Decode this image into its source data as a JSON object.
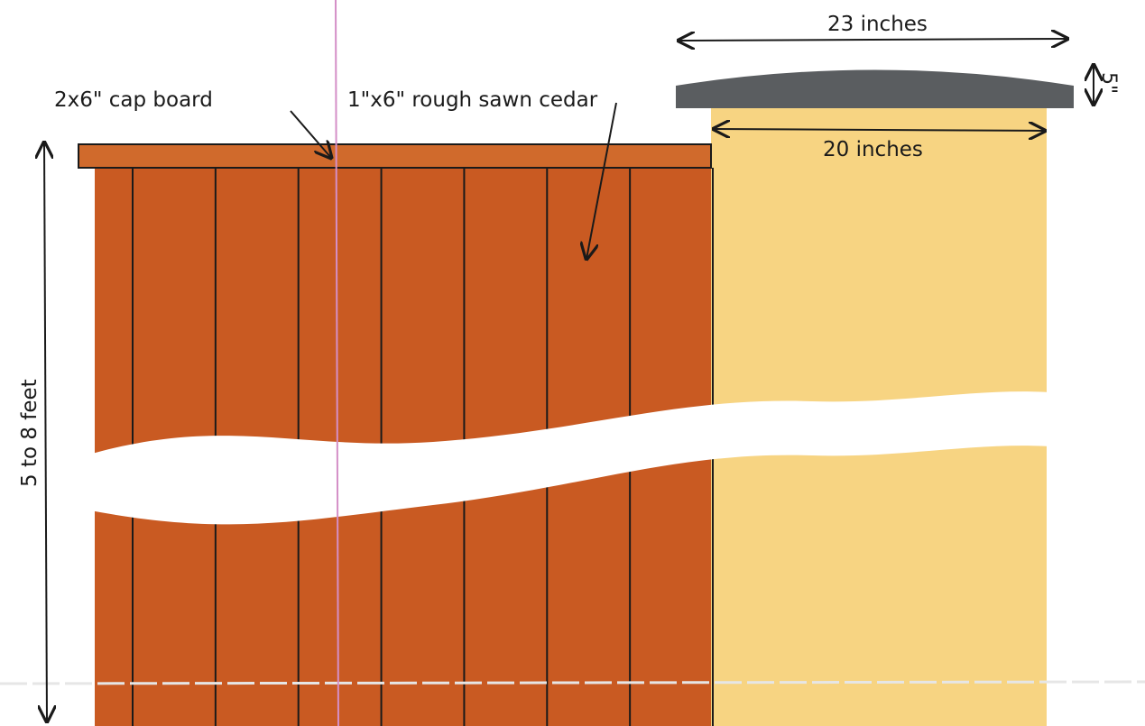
{
  "labels": {
    "cap_board": "2x6\" cap board",
    "cedar": "1\"x6\" rough sawn cedar",
    "post_cap_width": "23 inches",
    "post_width": "20 inches",
    "cap_thickness": "5\"",
    "fence_height": "5 to 8 feet"
  },
  "colors": {
    "fence_boards": "#c95a22",
    "cap_board": "#d06a2c",
    "post": "#f7d482",
    "post_cap": "#5a5d60",
    "line": "#1a1a1a",
    "break": "#ffffff"
  },
  "board_count": 8
}
